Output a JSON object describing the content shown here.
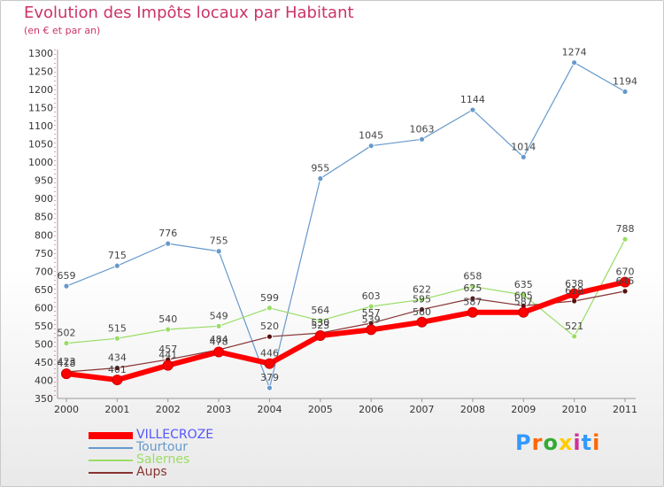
{
  "title": "Evolution des Impôts locaux par Habitant",
  "subtitle": "(en € et par an)",
  "logo_text": "Proxiti",
  "chart_data": {
    "type": "line",
    "title": "Evolution des Impôts locaux par Habitant",
    "ylabel": "(en € et par an)",
    "x": [
      "2000",
      "2001",
      "2002",
      "2003",
      "2004",
      "2005",
      "2006",
      "2007",
      "2008",
      "2009",
      "2010",
      "2011"
    ],
    "ylim": [
      350,
      1300
    ],
    "yticks": [
      350,
      400,
      450,
      500,
      550,
      600,
      650,
      700,
      750,
      800,
      850,
      900,
      950,
      1000,
      1050,
      1100,
      1150,
      1200,
      1250,
      1300
    ],
    "grid": false,
    "legend": "bottom-left",
    "series": [
      {
        "name": "VILLECROZE",
        "color": "#ff0000",
        "values": [
          418,
          401,
          441,
          478,
          446,
          523,
          539,
          560,
          587,
          587,
          638,
          670
        ]
      },
      {
        "name": "Tourtour",
        "color": "#6699cc",
        "values": [
          659,
          715,
          776,
          755,
          379,
          955,
          1045,
          1063,
          1144,
          1014,
          1274,
          1194
        ]
      },
      {
        "name": "Salernes",
        "color": "#99dd66",
        "values": [
          502,
          515,
          540,
          549,
          599,
          564,
          603,
          622,
          658,
          635,
          521,
          788
        ]
      },
      {
        "name": "Aups",
        "color": "#883333",
        "values": [
          423,
          434,
          457,
          484,
          520,
          530,
          557,
          595,
          625,
          605,
          618,
          645
        ]
      }
    ]
  }
}
